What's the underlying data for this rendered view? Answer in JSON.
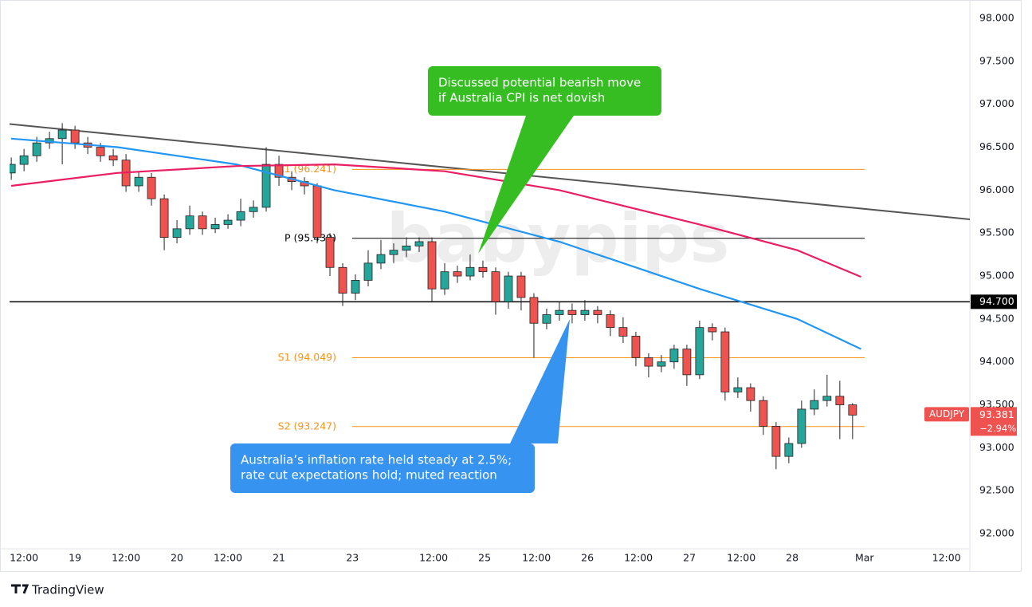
{
  "chart_data": {
    "type": "candlestick",
    "symbol": "AUDJPY",
    "last": 93.381,
    "change": {
      "value": -2.94,
      "label": "−2.94%"
    },
    "up_color": "#26a69a",
    "down_color": "#ef5350",
    "grid": false,
    "x": [
      -3,
      0,
      3,
      6,
      9,
      12,
      15,
      18,
      21,
      24,
      27,
      30,
      33,
      36,
      39,
      42,
      45,
      48,
      51,
      54,
      57,
      60,
      63,
      66,
      69,
      72,
      75,
      78,
      81,
      84,
      87,
      90,
      93,
      96,
      99,
      102,
      105,
      108,
      111,
      114,
      117,
      120,
      123,
      126,
      129,
      132,
      135,
      138,
      141,
      144,
      147,
      150,
      153,
      156,
      159,
      162,
      165,
      168,
      171,
      174,
      177,
      180,
      183,
      186,
      189,
      192,
      195
    ],
    "open": [
      96.2,
      96.3,
      96.4,
      96.55,
      96.6,
      96.7,
      96.55,
      96.5,
      96.4,
      96.35,
      96.05,
      96.15,
      95.9,
      95.45,
      95.55,
      95.7,
      95.55,
      95.6,
      95.65,
      95.75,
      95.8,
      96.3,
      96.15,
      96.1,
      96.05,
      95.45,
      95.1,
      94.8,
      94.95,
      95.15,
      95.25,
      95.3,
      95.35,
      95.4,
      94.85,
      95.05,
      95.0,
      95.1,
      95.05,
      94.7,
      95.0,
      94.75,
      94.45,
      94.55,
      94.6,
      94.55,
      94.6,
      94.55,
      94.4,
      94.3,
      94.05,
      93.95,
      94.0,
      94.15,
      93.85,
      94.4,
      94.35,
      93.65,
      93.7,
      93.55,
      93.25,
      92.9,
      93.05,
      93.45,
      93.55,
      93.6,
      93.5
    ],
    "high": [
      96.38,
      96.48,
      96.62,
      96.68,
      96.78,
      96.75,
      96.62,
      96.55,
      96.48,
      96.42,
      96.22,
      96.2,
      95.95,
      95.65,
      95.82,
      95.75,
      95.68,
      95.72,
      95.9,
      95.88,
      96.5,
      96.4,
      96.22,
      96.15,
      96.08,
      95.5,
      95.15,
      95.02,
      95.3,
      95.42,
      95.38,
      95.45,
      95.45,
      95.45,
      95.15,
      95.12,
      95.25,
      95.18,
      95.1,
      95.05,
      95.05,
      94.8,
      94.62,
      94.7,
      94.68,
      94.72,
      94.65,
      94.6,
      94.52,
      94.35,
      94.1,
      94.08,
      94.2,
      94.2,
      94.48,
      94.45,
      94.4,
      93.82,
      93.75,
      93.6,
      93.3,
      93.12,
      93.55,
      93.68,
      93.85,
      93.78,
      93.52
    ],
    "low": [
      96.12,
      96.22,
      96.33,
      96.48,
      96.3,
      96.48,
      96.42,
      96.33,
      96.28,
      95.98,
      95.98,
      95.82,
      95.3,
      95.38,
      95.48,
      95.48,
      95.5,
      95.55,
      95.58,
      95.68,
      95.75,
      96.05,
      96.0,
      95.95,
      95.38,
      95.0,
      94.65,
      94.72,
      94.88,
      95.08,
      95.15,
      95.22,
      95.28,
      94.7,
      94.78,
      94.92,
      94.95,
      94.98,
      94.55,
      94.62,
      94.6,
      94.05,
      94.38,
      94.48,
      94.45,
      94.48,
      94.45,
      94.3,
      94.22,
      93.95,
      93.82,
      93.88,
      93.92,
      93.72,
      93.8,
      94.25,
      93.55,
      93.58,
      93.42,
      93.15,
      92.75,
      92.82,
      93.0,
      93.38,
      93.48,
      93.1,
      93.1
    ],
    "close": [
      96.3,
      96.4,
      96.55,
      96.6,
      96.7,
      96.55,
      96.5,
      96.4,
      96.35,
      96.05,
      96.15,
      95.9,
      95.45,
      95.55,
      95.7,
      95.55,
      95.6,
      95.65,
      95.75,
      95.8,
      96.3,
      96.15,
      96.1,
      96.05,
      95.45,
      95.1,
      94.8,
      94.95,
      95.15,
      95.25,
      95.3,
      95.35,
      95.4,
      94.85,
      95.05,
      95.0,
      95.1,
      95.05,
      94.7,
      95.0,
      94.75,
      94.45,
      94.55,
      94.6,
      94.55,
      94.6,
      94.55,
      94.4,
      94.3,
      94.05,
      93.95,
      94.0,
      94.15,
      93.85,
      94.4,
      94.35,
      93.65,
      93.7,
      93.55,
      93.25,
      92.9,
      93.05,
      93.45,
      93.55,
      93.6,
      93.5,
      93.381
    ],
    "xlim": [
      -3.4,
      222.6
    ],
    "xticks": [
      {
        "value": 0,
        "label": "12:00"
      },
      {
        "value": 12,
        "label": "19"
      },
      {
        "value": 24,
        "label": "12:00"
      },
      {
        "value": 36,
        "label": "20"
      },
      {
        "value": 48,
        "label": "12:00"
      },
      {
        "value": 60,
        "label": "21"
      },
      {
        "value": 77.3,
        "label": "23"
      },
      {
        "value": 96.4,
        "label": "12:00"
      },
      {
        "value": 108.4,
        "label": "25"
      },
      {
        "value": 120.6,
        "label": "12:00"
      },
      {
        "value": 132.6,
        "label": "26"
      },
      {
        "value": 144.6,
        "label": "12:00"
      },
      {
        "value": 156.6,
        "label": "27"
      },
      {
        "value": 168.8,
        "label": "12:00"
      },
      {
        "value": 180.8,
        "label": "28"
      },
      {
        "value": 197.8,
        "label": "Mar"
      },
      {
        "value": 217.1,
        "label": "12:00"
      }
    ],
    "ylim": [
      91.824,
      98.214
    ],
    "yticks": [
      {
        "value": 92,
        "label": "92.000"
      },
      {
        "value": 92.5,
        "label": "92.500"
      },
      {
        "value": 93,
        "label": "93.000"
      },
      {
        "value": 93.5,
        "label": "93.500"
      },
      {
        "value": 94,
        "label": "94.000"
      },
      {
        "value": 94.5,
        "label": "94.500"
      },
      {
        "value": 95,
        "label": "95.000"
      },
      {
        "value": 95.5,
        "label": "95.500"
      },
      {
        "value": 96,
        "label": "96.000"
      },
      {
        "value": 96.5,
        "label": "96.500"
      },
      {
        "value": 97,
        "label": "97.000"
      },
      {
        "value": 97.5,
        "label": "97.500"
      },
      {
        "value": 98,
        "label": "98.000"
      }
    ],
    "moving_averages": [
      {
        "color": "#2196f3",
        "x": [
          -3,
          22,
          50,
          73,
          99,
          126,
          159,
          182,
          197
        ],
        "values": [
          96.6,
          96.5,
          96.3,
          96.0,
          95.75,
          95.4,
          94.85,
          94.5,
          94.15
        ]
      },
      {
        "color": "#e91e63",
        "x": [
          -3,
          22,
          50,
          73,
          99,
          126,
          159,
          182,
          197
        ],
        "values": [
          96.05,
          96.2,
          96.28,
          96.3,
          96.22,
          96.0,
          95.6,
          95.3,
          94.99
        ]
      }
    ],
    "trendline": {
      "color": "#555555",
      "x": [
        -3.4,
        222.6
      ],
      "values": [
        96.77,
        95.66
      ]
    },
    "pivots": [
      {
        "label": "R1 (96.241)",
        "value": 96.241,
        "color": "#f7931a"
      },
      {
        "label": "P (95.439)",
        "value": 95.439,
        "color": "#000000"
      },
      {
        "label": "S1 (94.049)",
        "value": 94.049,
        "color": "#f7931a"
      },
      {
        "label": "S2 (93.247)",
        "value": 93.247,
        "color": "#f7931a"
      }
    ],
    "price_line": {
      "value": 94.7,
      "label": "94.700",
      "color": "#000000"
    },
    "annotations": [
      {
        "lines": [
          "Discussed potential bearish move",
          "if Australia CPI is net dovish"
        ],
        "color": "#35bd22"
      },
      {
        "lines": [
          "Australia’s inflation rate held steady at 2.5%;",
          "rate cut expectations hold; muted reaction"
        ],
        "color": "#3793f0"
      }
    ],
    "watermark": "babypips"
  },
  "branding": "TradingView"
}
